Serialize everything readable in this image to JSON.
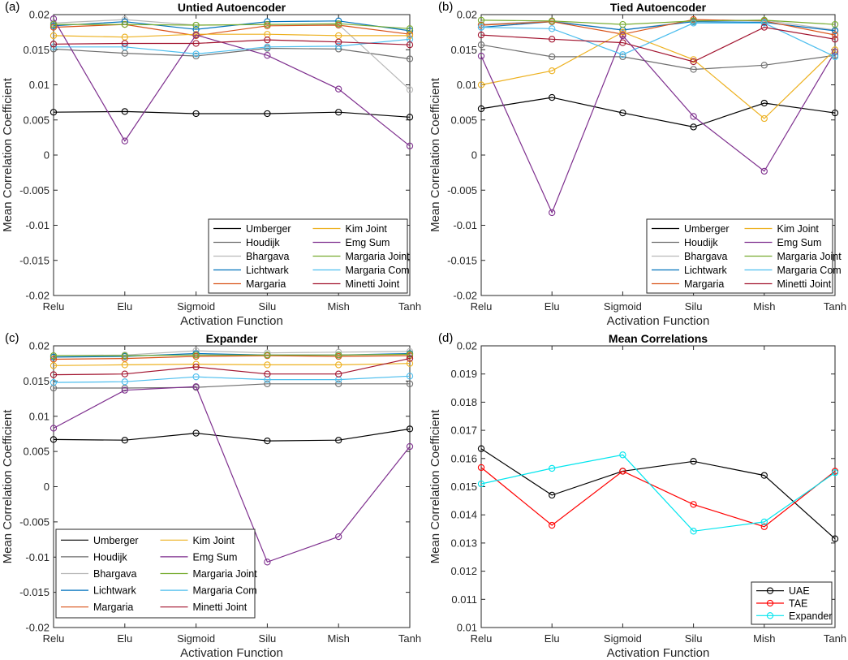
{
  "chart_data": [
    {
      "type": "line",
      "panel_label": "(a)",
      "title": "Untied Autoencoder",
      "xlabel": "Activation Function",
      "ylabel": "Mean Correlation Coefficient",
      "categories": [
        "Relu",
        "Elu",
        "Sigmoid",
        "Silu",
        "Mish",
        "Tanh"
      ],
      "ylim": [
        -0.02,
        0.02
      ],
      "yticks": [
        -0.02,
        -0.015,
        -0.01,
        -0.005,
        0,
        0.005,
        0.01,
        0.015,
        0.02
      ],
      "ytick_labels": [
        "-0.02",
        "-0.015",
        "-0.01",
        "-0.005",
        "0",
        "0.005",
        "0.01",
        "0.015",
        "0.02"
      ],
      "legend_position": "bottom-right",
      "legend_columns": 2,
      "series": [
        {
          "name": "Umberger",
          "color": "#000000",
          "values": [
            0.0061,
            0.0062,
            0.0059,
            0.0059,
            0.0061,
            0.0054
          ]
        },
        {
          "name": "Houdijk",
          "color": "#6e6e6e",
          "values": [
            0.0151,
            0.0145,
            0.0141,
            0.0152,
            0.0151,
            0.0137
          ]
        },
        {
          "name": "Bhargava",
          "color": "#b8b8b8",
          "values": [
            0.0188,
            0.0193,
            0.0185,
            0.0186,
            0.0186,
            0.0093
          ]
        },
        {
          "name": "Lichtwark",
          "color": "#0072bd",
          "values": [
            0.0184,
            0.019,
            0.0179,
            0.019,
            0.0191,
            0.0177
          ]
        },
        {
          "name": "Margaria",
          "color": "#d95319",
          "values": [
            0.0182,
            0.0186,
            0.017,
            0.0184,
            0.0185,
            0.0172
          ]
        },
        {
          "name": "Kim Joint",
          "color": "#edb120",
          "values": [
            0.017,
            0.0168,
            0.0172,
            0.0172,
            0.017,
            0.017
          ]
        },
        {
          "name": "Emg Sum",
          "color": "#7e2f8e",
          "values": [
            0.0194,
            0.002,
            0.0171,
            0.0142,
            0.0094,
            0.0013
          ]
        },
        {
          "name": "Margaria Joint",
          "color": "#77ac30",
          "values": [
            0.0186,
            0.0186,
            0.0185,
            0.0186,
            0.0187,
            0.018
          ]
        },
        {
          "name": "Margaria Com",
          "color": "#4dbeee",
          "values": [
            0.0154,
            0.0154,
            0.0144,
            0.0154,
            0.0155,
            0.0165
          ]
        },
        {
          "name": "Minetti Joint",
          "color": "#a2142f",
          "values": [
            0.0158,
            0.0159,
            0.0159,
            0.0164,
            0.0161,
            0.0157
          ]
        }
      ]
    },
    {
      "type": "line",
      "panel_label": "(b)",
      "title": "Tied Autoencoder",
      "xlabel": "Activation Function",
      "ylabel": "Mean Correlation Coefficient",
      "categories": [
        "Relu",
        "Elu",
        "Sigmoid",
        "Silu",
        "Mish",
        "Tanh"
      ],
      "ylim": [
        -0.02,
        0.02
      ],
      "yticks": [
        -0.02,
        -0.015,
        -0.01,
        -0.005,
        0,
        0.005,
        0.01,
        0.015,
        0.02
      ],
      "ytick_labels": [
        "-0.02",
        "-0.015",
        "-0.01",
        "-0.005",
        "0",
        "0.005",
        "0.01",
        "0.015",
        "0.02"
      ],
      "legend_position": "bottom-right",
      "legend_columns": 2,
      "series": [
        {
          "name": "Umberger",
          "color": "#000000",
          "values": [
            0.0066,
            0.0082,
            0.006,
            0.004,
            0.0074,
            0.006
          ]
        },
        {
          "name": "Houdijk",
          "color": "#6e6e6e",
          "values": [
            0.0157,
            0.014,
            0.014,
            0.0122,
            0.0128,
            0.0142
          ]
        },
        {
          "name": "Bhargava",
          "color": "#b8b8b8",
          "values": [
            0.0186,
            0.0191,
            0.0178,
            0.0191,
            0.0192,
            0.0178
          ]
        },
        {
          "name": "Lichtwark",
          "color": "#0072bd",
          "values": [
            0.0182,
            0.019,
            0.0178,
            0.019,
            0.0189,
            0.0177
          ]
        },
        {
          "name": "Margaria",
          "color": "#d95319",
          "values": [
            0.0185,
            0.019,
            0.0172,
            0.0193,
            0.0191,
            0.0171
          ]
        },
        {
          "name": "Kim Joint",
          "color": "#edb120",
          "values": [
            0.01,
            0.012,
            0.0175,
            0.0136,
            0.0052,
            0.015
          ]
        },
        {
          "name": "Emg Sum",
          "color": "#7e2f8e",
          "values": [
            0.0141,
            -0.0082,
            0.017,
            0.0055,
            -0.0023,
            0.0147
          ]
        },
        {
          "name": "Margaria Joint",
          "color": "#77ac30",
          "values": [
            0.0192,
            0.0191,
            0.0186,
            0.0191,
            0.0192,
            0.0186
          ]
        },
        {
          "name": "Margaria Com",
          "color": "#4dbeee",
          "values": [
            0.0182,
            0.018,
            0.0143,
            0.0188,
            0.0188,
            0.014
          ]
        },
        {
          "name": "Minetti Joint",
          "color": "#a2142f",
          "values": [
            0.0171,
            0.0165,
            0.016,
            0.0133,
            0.0182,
            0.0165
          ]
        }
      ]
    },
    {
      "type": "line",
      "panel_label": "(c)",
      "title": "Expander",
      "xlabel": "Activation Function",
      "ylabel": "Mean Correlation Coefficient",
      "categories": [
        "Relu",
        "Elu",
        "Sigmoid",
        "Silu",
        "Mish",
        "Tanh"
      ],
      "ylim": [
        -0.02,
        0.02
      ],
      "yticks": [
        -0.02,
        -0.015,
        -0.01,
        -0.005,
        0,
        0.005,
        0.01,
        0.015,
        0.02
      ],
      "ytick_labels": [
        "-0.02",
        "-0.015",
        "-0.01",
        "-0.005",
        "0",
        "0.005",
        "0.01",
        "0.015",
        "0.02"
      ],
      "legend_position": "bottom-left",
      "legend_columns": 2,
      "series": [
        {
          "name": "Umberger",
          "color": "#000000",
          "values": [
            0.0067,
            0.0066,
            0.0076,
            0.0065,
            0.0066,
            0.0082
          ]
        },
        {
          "name": "Houdijk",
          "color": "#6e6e6e",
          "values": [
            0.014,
            0.014,
            0.0141,
            0.0146,
            0.0146,
            0.0146
          ]
        },
        {
          "name": "Bhargava",
          "color": "#b8b8b8",
          "values": [
            0.0186,
            0.0187,
            0.0193,
            0.019,
            0.0191,
            0.0192
          ]
        },
        {
          "name": "Lichtwark",
          "color": "#0072bd",
          "values": [
            0.0184,
            0.0185,
            0.0189,
            0.0187,
            0.0187,
            0.0189
          ]
        },
        {
          "name": "Margaria",
          "color": "#d95319",
          "values": [
            0.0181,
            0.0182,
            0.0185,
            0.0186,
            0.0185,
            0.0186
          ]
        },
        {
          "name": "Kim Joint",
          "color": "#edb120",
          "values": [
            0.0172,
            0.0173,
            0.0174,
            0.0173,
            0.0173,
            0.0175
          ]
        },
        {
          "name": "Emg Sum",
          "color": "#7e2f8e",
          "values": [
            0.0083,
            0.0137,
            0.0142,
            -0.0107,
            -0.0071,
            0.0057
          ]
        },
        {
          "name": "Margaria Joint",
          "color": "#77ac30",
          "values": [
            0.0186,
            0.0186,
            0.0187,
            0.0187,
            0.0187,
            0.0188
          ]
        },
        {
          "name": "Margaria Com",
          "color": "#4dbeee",
          "values": [
            0.0148,
            0.0149,
            0.0156,
            0.0152,
            0.0152,
            0.0157
          ]
        },
        {
          "name": "Minetti Joint",
          "color": "#a2142f",
          "values": [
            0.0159,
            0.016,
            0.017,
            0.016,
            0.016,
            0.0182
          ]
        }
      ]
    },
    {
      "type": "line",
      "panel_label": "(d)",
      "title": "Mean Correlations",
      "xlabel": "Activation Function",
      "ylabel": "Mean Correlation Coefficient",
      "categories": [
        "Relu",
        "Elu",
        "Sigmoid",
        "Silu",
        "Mish",
        "Tanh"
      ],
      "ylim": [
        0.01,
        0.02
      ],
      "yticks": [
        0.01,
        0.011,
        0.012,
        0.013,
        0.014,
        0.015,
        0.016,
        0.017,
        0.018,
        0.019,
        0.02
      ],
      "ytick_labels": [
        "0.01",
        "0.011",
        "0.012",
        "0.013",
        "0.014",
        "0.015",
        "0.016",
        "0.017",
        "0.018",
        "0.019",
        "0.02"
      ],
      "legend_position": "bottom-right",
      "legend_columns": 1,
      "series": [
        {
          "name": "UAE",
          "color": "#000000",
          "values": [
            0.01635,
            0.0147,
            0.01555,
            0.0159,
            0.0154,
            0.01315
          ]
        },
        {
          "name": "TAE",
          "color": "#ff0000",
          "values": [
            0.01568,
            0.01363,
            0.01555,
            0.01437,
            0.01358,
            0.01555
          ]
        },
        {
          "name": "Expander",
          "color": "#00e5ee",
          "values": [
            0.0151,
            0.01565,
            0.01613,
            0.01342,
            0.01375,
            0.0155
          ]
        }
      ]
    }
  ]
}
